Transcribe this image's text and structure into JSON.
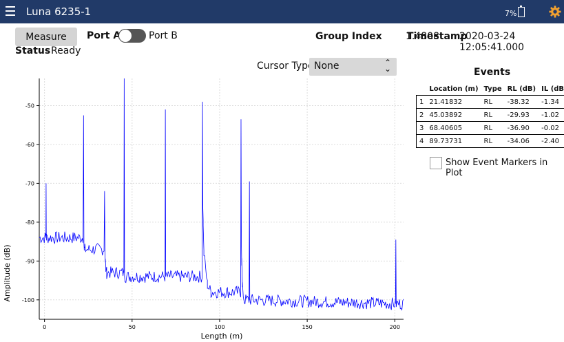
{
  "app": {
    "title": "Luna 6235-1",
    "battery": "7%"
  },
  "controls": {
    "measure_label": "Measure",
    "port_a": "Port A",
    "port_b": "Port B",
    "status_label": "Status",
    "status_value": "Ready",
    "group_index_label": "Group Index",
    "group_index_value": "1.4808",
    "timestamp_label": "Timestamp",
    "timestamp_value": "2020-03-24 12:05:41.000",
    "cursor_type_label": "Cursor Type",
    "cursor_type_value": "None"
  },
  "events": {
    "title": "Events",
    "columns": [
      "",
      "Location (m)",
      "Type",
      "RL (dB)",
      "IL (dB)"
    ],
    "rows": [
      [
        "1",
        "21.41832",
        "RL",
        "-38.32",
        "-1.34"
      ],
      [
        "2",
        "45.03892",
        "RL",
        "-29.93",
        "-1.02"
      ],
      [
        "3",
        "68.40605",
        "RL",
        "-36.90",
        "-0.02"
      ],
      [
        "4",
        "89.73731",
        "RL",
        "-34.06",
        "-2.40"
      ]
    ],
    "show_markers_label": "Show Event Markers in Plot",
    "show_markers_checked": false
  },
  "chart_data": {
    "type": "line",
    "xlabel": "Length (m)",
    "ylabel": "Amplitude (dB)",
    "xlim": [
      -3,
      205
    ],
    "ylim": [
      -105,
      -43
    ],
    "xticks": [
      0,
      50,
      100,
      150,
      200
    ],
    "yticks": [
      -50,
      -60,
      -70,
      -80,
      -90,
      -100
    ],
    "grid": true,
    "color": "#0000ff",
    "series": [
      {
        "x": [
          -3,
          0.8,
          0.9,
          1.0,
          1.1,
          22,
          22.3,
          22.5,
          22.7,
          23,
          34,
          34.3,
          34.5,
          34.7,
          35,
          35.5,
          45.3,
          45.5,
          45.7,
          46,
          68.8,
          69,
          69.2,
          90,
          90.2,
          90.4,
          90.6,
          91,
          93,
          95,
          112,
          112.2,
          112.4,
          112.6,
          113,
          114,
          116.8,
          117,
          117.2,
          200.4,
          200.6,
          200.8,
          205
        ],
        "y": [
          -84,
          -84,
          -70,
          -82,
          -84,
          -84,
          -52.5,
          -84,
          -87,
          -87,
          -87,
          -72,
          -87,
          -90,
          -92,
          -93,
          -93,
          -43,
          -93,
          -94,
          -94,
          -51,
          -94,
          -94,
          -49,
          -75,
          -80,
          -88,
          -96,
          -98,
          -98,
          -53.5,
          -84,
          -90,
          -97,
          -100,
          -100,
          -69.5,
          -100,
          -101,
          -84.5,
          -101,
          -101
        ]
      }
    ]
  }
}
